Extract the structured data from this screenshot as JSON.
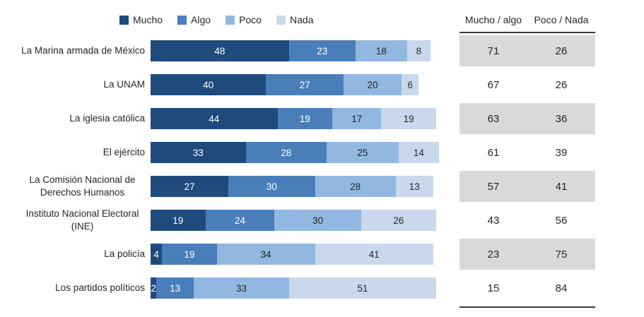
{
  "chart_data": {
    "type": "bar",
    "orientation": "horizontal",
    "stacked": true,
    "unit": "percent",
    "xlim": [
      0,
      100
    ],
    "legend_position": "top",
    "grid": false,
    "categories": [
      "La Marina armada de México",
      "La UNAM",
      "La iglesia católica",
      "El ejército",
      "La Comisión Nacional de\nDerechos Humanos",
      "Instituto Nacional Electoral\n(INE)",
      "La policía",
      "Los partidos políticos"
    ],
    "series": [
      {
        "name": "Mucho",
        "color": "#1F4B7C",
        "text_color": "#ffffff",
        "values": [
          48,
          40,
          44,
          33,
          27,
          19,
          4,
          2
        ]
      },
      {
        "name": "Algo",
        "color": "#4A7EBB",
        "text_color": "#ffffff",
        "values": [
          23,
          27,
          19,
          28,
          30,
          24,
          19,
          13
        ]
      },
      {
        "name": "Poco",
        "color": "#92B7E0",
        "text_color": "#262626",
        "values": [
          18,
          20,
          17,
          25,
          28,
          30,
          34,
          33
        ]
      },
      {
        "name": "Nada",
        "color": "#C9D8EC",
        "text_color": "#262626",
        "values": [
          8,
          6,
          19,
          14,
          13,
          26,
          41,
          51
        ]
      }
    ],
    "summary_table": {
      "columns": [
        "Mucho / algo",
        "Poco / Nada"
      ],
      "rows": [
        [
          71,
          26
        ],
        [
          67,
          26
        ],
        [
          63,
          36
        ],
        [
          61,
          39
        ],
        [
          57,
          41
        ],
        [
          43,
          56
        ],
        [
          23,
          75
        ],
        [
          15,
          84
        ]
      ],
      "shaded_row_color": "#D9D9D9",
      "shaded_rows": [
        0,
        2,
        4,
        6
      ]
    }
  }
}
